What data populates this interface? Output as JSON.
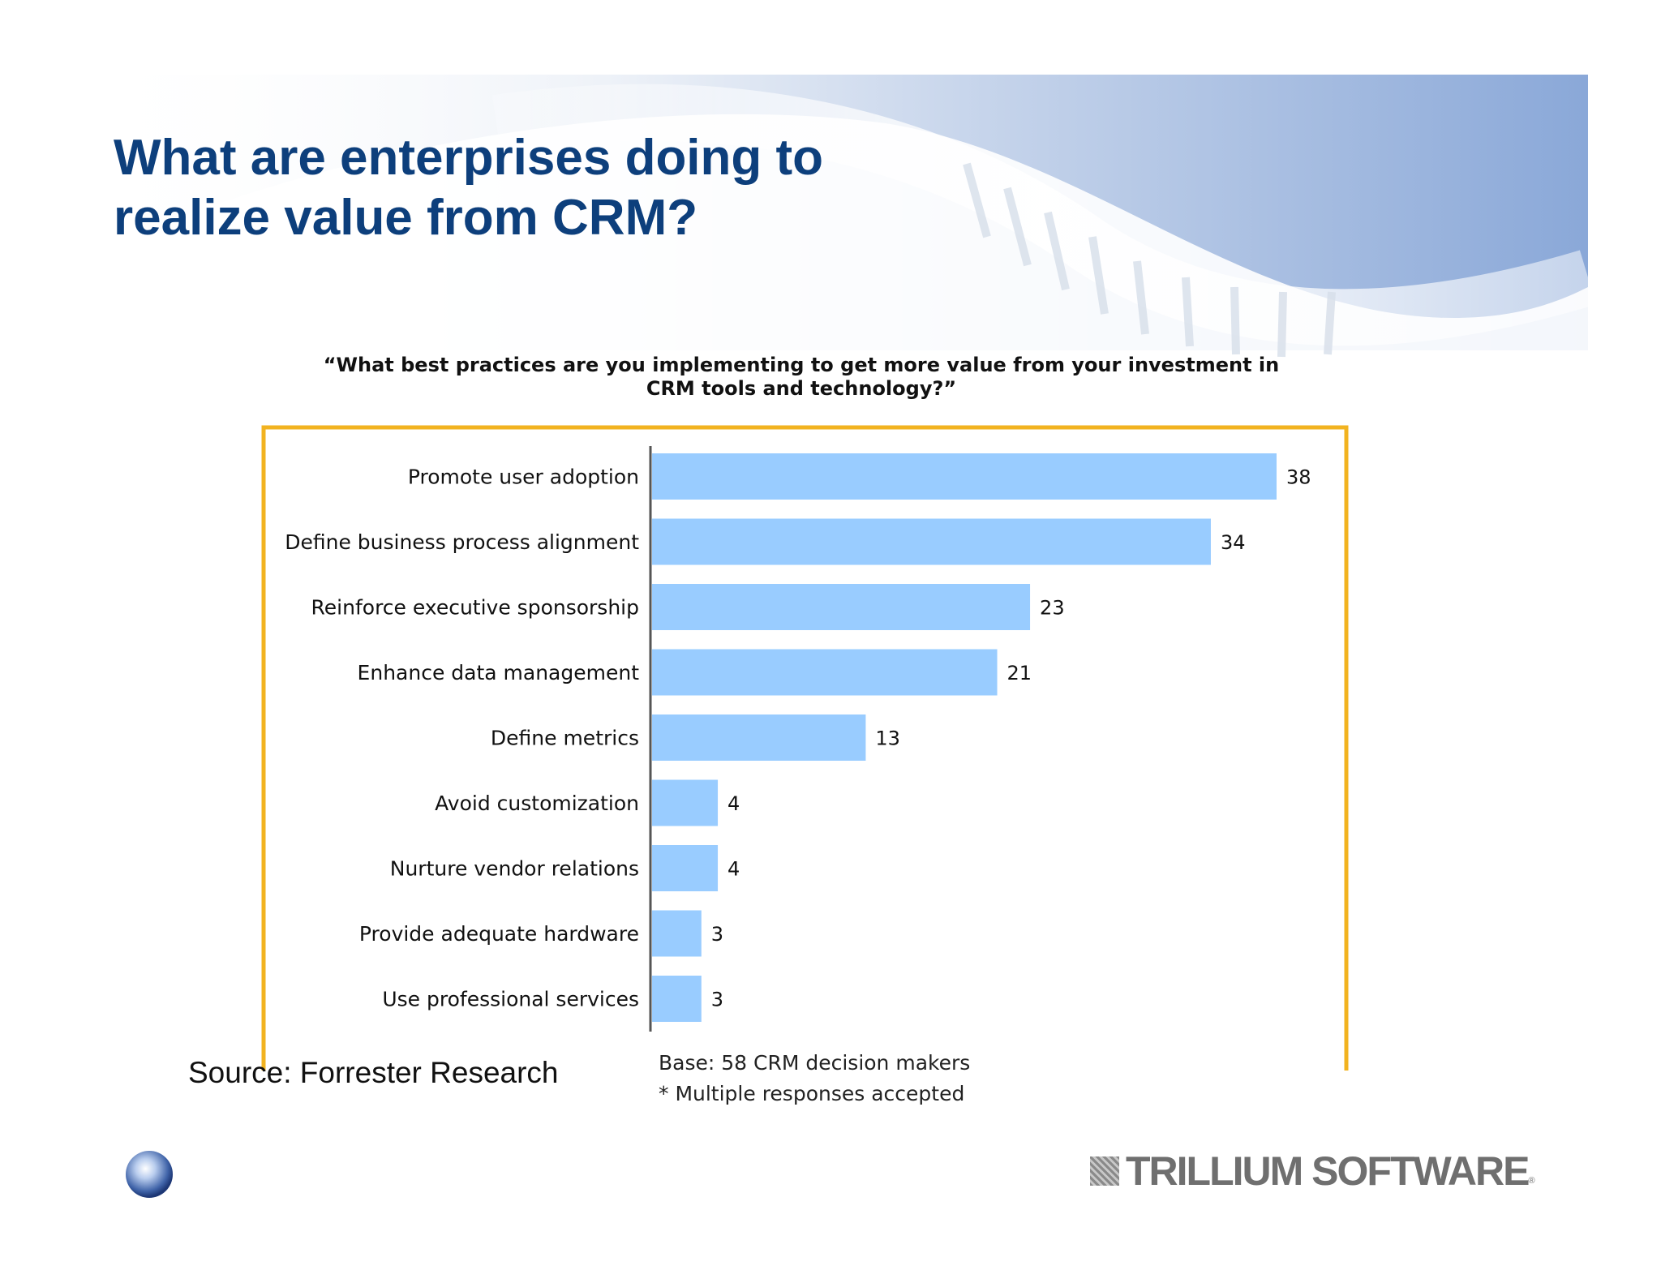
{
  "slide": {
    "title_lines": [
      "What are enterprises doing to",
      "realize value from CRM?"
    ],
    "source": "Source: Forrester Research",
    "notes": [
      "Base: 58 CRM decision makers",
      "* Multiple responses accepted"
    ],
    "logo_text": "TRILLIUM SOFTWARE",
    "logo_reg": "®"
  },
  "colors": {
    "title": "#0d3f7c",
    "bar": "#99ccff",
    "highlight_box": "#f2b320",
    "axis": "#555555"
  },
  "chart_data": {
    "type": "bar",
    "orientation": "horizontal",
    "title_lines": [
      "“What best practices are you implementing to get more value from your investment in",
      "CRM tools and technology?”"
    ],
    "categories": [
      "Promote user adoption",
      "Define business process alignment",
      "Reinforce executive sponsorship",
      "Enhance data management",
      "Define metrics",
      "Avoid customization",
      "Nurture vendor relations",
      "Provide adequate hardware",
      "Use professional services"
    ],
    "values": [
      38,
      34,
      23,
      21,
      13,
      4,
      4,
      3,
      3
    ],
    "xlim": [
      0,
      38
    ],
    "highlighted_categories": [
      0,
      1,
      2,
      3,
      4
    ],
    "grid": false,
    "legend": "none"
  }
}
